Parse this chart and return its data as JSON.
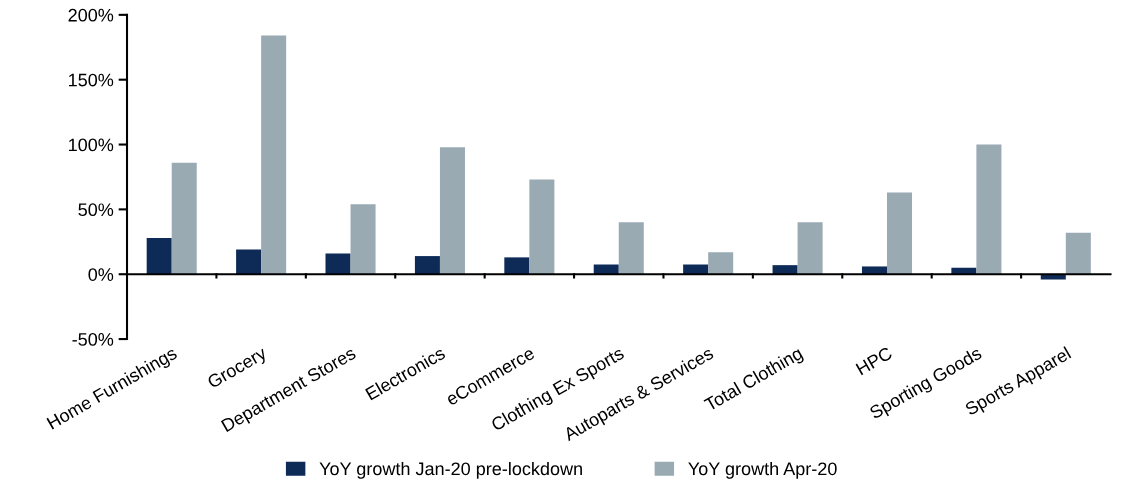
{
  "chart_data": {
    "type": "bar",
    "categories": [
      "Home Furnishings",
      "Grocery",
      "Department Stores",
      "Electronics",
      "eCommerce",
      "Clothing Ex Sports",
      "Autoparts & Services",
      "Total Clothing",
      "HPC",
      "Sporting Goods",
      "Sports Apparel"
    ],
    "series": [
      {
        "name": "YoY growth Jan-20 pre-lockdown",
        "color": "#0e2b58",
        "values": [
          28,
          19,
          16,
          14,
          13,
          7.5,
          7.5,
          7,
          6,
          5,
          -4
        ]
      },
      {
        "name": "YoY growth Apr-20",
        "color": "#9aaab3",
        "values": [
          86,
          184,
          54,
          98,
          73,
          40,
          17,
          40,
          63,
          100,
          32
        ]
      }
    ],
    "ylim": [
      -50,
      200
    ],
    "yticks": [
      {
        "value": -50,
        "label": "-50%"
      },
      {
        "value": 0,
        "label": "0%"
      },
      {
        "value": 50,
        "label": "50%"
      },
      {
        "value": 100,
        "label": "100%"
      },
      {
        "value": 150,
        "label": "150%"
      },
      {
        "value": 200,
        "label": "200%"
      }
    ],
    "legend": "bottom"
  }
}
